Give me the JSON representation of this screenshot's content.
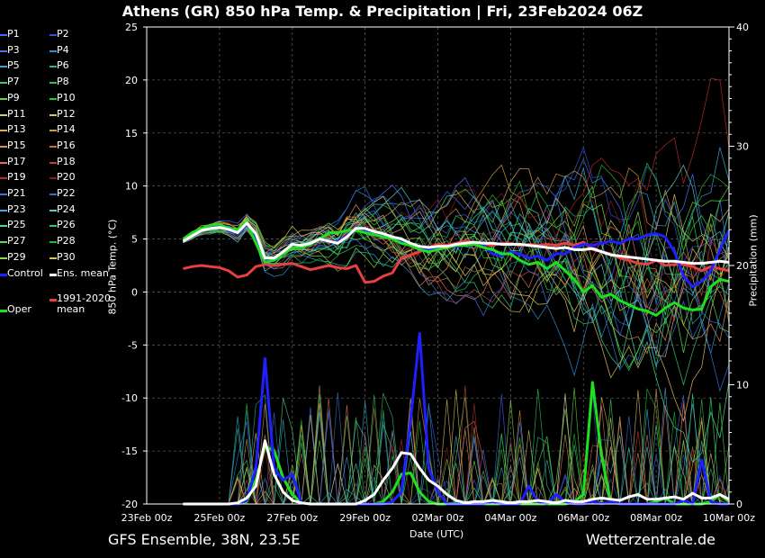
{
  "title": "Athens  (GR)  850 hPa Temp. & Precipitation | Fri, 23Feb2024 06Z",
  "footer": {
    "model": "GFS Ensemble, 38N, 23.5E",
    "site": "Wetterzentrale.de"
  },
  "colors": {
    "background": "#000000",
    "grid": "#555555",
    "control": "#1f1fff",
    "ens_mean": "#ffffff",
    "climate": "#e84040",
    "oper": "#1ee01e"
  },
  "legend": [
    {
      "label": "P1",
      "color": "#4466ff"
    },
    {
      "label": "P2",
      "color": "#3355dd"
    },
    {
      "label": "P3",
      "color": "#4477ee"
    },
    {
      "label": "P4",
      "color": "#2f8fd6"
    },
    {
      "label": "P5",
      "color": "#33a9d0"
    },
    {
      "label": "P6",
      "color": "#2bb39a"
    },
    {
      "label": "P7",
      "color": "#33cc77"
    },
    {
      "label": "P8",
      "color": "#2ec45a"
    },
    {
      "label": "P9",
      "color": "#66d24a"
    },
    {
      "label": "P10",
      "color": "#22cc22"
    },
    {
      "label": "P11",
      "color": "#d8c870"
    },
    {
      "label": "P12",
      "color": "#e0c060"
    },
    {
      "label": "P13",
      "color": "#d6b060"
    },
    {
      "label": "P14",
      "color": "#cc9944"
    },
    {
      "label": "P15",
      "color": "#d89050"
    },
    {
      "label": "P16",
      "color": "#c87038"
    },
    {
      "label": "P17",
      "color": "#d87060"
    },
    {
      "label": "P18",
      "color": "#c04040"
    },
    {
      "label": "P19",
      "color": "#b02a2a"
    },
    {
      "label": "P20",
      "color": "#901818"
    },
    {
      "label": "P21",
      "color": "#3c70e0"
    },
    {
      "label": "P22",
      "color": "#3070cc"
    },
    {
      "label": "P23",
      "color": "#44aadd"
    },
    {
      "label": "P24",
      "color": "#55cccc"
    },
    {
      "label": "P25",
      "color": "#44dd88"
    },
    {
      "label": "P26",
      "color": "#33cc66"
    },
    {
      "label": "P27",
      "color": "#55dd55"
    },
    {
      "label": "P28",
      "color": "#22bb33"
    },
    {
      "label": "P29",
      "color": "#88dd44"
    },
    {
      "label": "P30",
      "color": "#d8c848"
    },
    {
      "label": "Control",
      "color": "#1f1fff"
    },
    {
      "label": "Ens. mean",
      "color": "#ffffff"
    },
    {
      "label": "Oper",
      "color": "#1ee01e"
    },
    {
      "label": "1991-2020\nmean",
      "color": "#e84040"
    }
  ],
  "axes": {
    "ylabel_left": "850 hPa Temp. (°C)",
    "ylabel_right": "Precipitation (mm)",
    "xlabel": "Date (UTC)"
  },
  "chart_data": {
    "type": "line",
    "x_ticks": [
      "23Feb 00z",
      "25Feb 00z",
      "27Feb 00z",
      "29Feb 00z",
      "02Mar 00z",
      "04Mar 00z",
      "06Mar 00z",
      "08Mar 00z",
      "10Mar 00z"
    ],
    "x_range_days": [
      0,
      16
    ],
    "ylim_left": [
      -20,
      25
    ],
    "y_ticks_left": [
      -20,
      -15,
      -10,
      -5,
      0,
      5,
      10,
      15,
      20,
      25
    ],
    "ylim_right": [
      0,
      40
    ],
    "y_ticks_right": [
      0,
      10,
      20,
      30,
      40
    ],
    "grid": true,
    "series": [
      {
        "name": "Ens. mean",
        "axis": "temp",
        "x_start": 1.0,
        "step": 0.25,
        "values": [
          4.8,
          5.3,
          5.8,
          6.0,
          6.1,
          5.9,
          5.6,
          6.5,
          5.5,
          3.2,
          3.2,
          3.8,
          4.5,
          4.4,
          4.6,
          5.0,
          4.8,
          4.6,
          5.2,
          6.0,
          6.0,
          5.7,
          5.5,
          5.2,
          5.0,
          4.6,
          4.3,
          4.2,
          4.3,
          4.3,
          4.5,
          4.6,
          4.7,
          4.6,
          4.6,
          4.5,
          4.5,
          4.5,
          4.4,
          4.3,
          4.2,
          4.1,
          4.2,
          4.0,
          4.0,
          4.1,
          3.8,
          3.5,
          3.4,
          3.3,
          3.2,
          3.1,
          3.0,
          2.9,
          2.9,
          2.8,
          2.7,
          2.7,
          2.8,
          2.9,
          2.8
        ]
      },
      {
        "name": "Control",
        "axis": "temp",
        "x_start": 1.0,
        "step": 0.25,
        "values": [
          5.0,
          5.5,
          5.8,
          6.1,
          6.2,
          5.8,
          5.5,
          6.4,
          5.0,
          3.0,
          3.1,
          3.8,
          4.4,
          4.3,
          4.5,
          5.0,
          4.8,
          4.7,
          5.3,
          5.9,
          5.8,
          5.4,
          5.3,
          5.0,
          4.8,
          4.5,
          4.2,
          4.0,
          4.1,
          4.2,
          4.3,
          4.4,
          4.6,
          4.4,
          3.6,
          3.4,
          3.8,
          3.6,
          3.2,
          3.4,
          3.0,
          3.6,
          3.6,
          4.2,
          4.5,
          4.4,
          4.6,
          4.8,
          4.6,
          5.0,
          5.0,
          5.4,
          5.5,
          5.2,
          3.8,
          1.5,
          0.5,
          1.0,
          2.0,
          4.0,
          5.8
        ]
      },
      {
        "name": "Oper",
        "axis": "temp",
        "x_start": 1.0,
        "step": 0.25,
        "values": [
          5.0,
          5.6,
          6.0,
          6.3,
          6.4,
          6.0,
          5.9,
          6.6,
          4.6,
          2.8,
          3.0,
          3.6,
          4.2,
          4.2,
          4.5,
          5.0,
          5.6,
          5.6,
          5.8,
          5.8,
          5.6,
          5.4,
          5.2,
          5.0,
          4.6,
          4.4,
          4.0,
          3.8,
          4.0,
          4.2,
          4.4,
          4.4,
          4.5,
          4.2,
          4.0,
          3.6,
          3.6,
          3.0,
          2.6,
          2.8,
          2.2,
          2.8,
          2.0,
          1.2,
          0.0,
          0.6,
          -0.5,
          -0.2,
          -0.8,
          -1.2,
          -1.6,
          -1.8,
          -2.2,
          -1.5,
          -1.0,
          -1.5,
          -1.7,
          -1.6,
          0.5,
          1.2,
          1.0
        ]
      },
      {
        "name": "1991-2020 mean",
        "axis": "temp",
        "x_start": 1.0,
        "step": 0.25,
        "values": [
          2.2,
          2.4,
          2.5,
          2.4,
          2.3,
          2.0,
          1.4,
          1.6,
          2.4,
          2.6,
          2.5,
          2.6,
          2.7,
          2.4,
          2.1,
          2.3,
          2.5,
          2.3,
          2.2,
          2.5,
          0.9,
          1.0,
          1.5,
          1.8,
          3.2,
          3.5,
          3.8,
          4.2,
          4.5,
          4.4,
          4.6,
          4.8,
          4.7,
          4.5,
          4.4,
          4.6,
          4.6,
          4.4,
          4.5,
          4.4,
          4.5,
          4.4,
          4.6,
          4.4,
          4.7,
          4.0,
          3.8,
          3.6,
          3.2,
          3.0,
          2.7,
          2.6,
          3.0,
          2.5,
          2.6,
          2.6,
          2.4,
          2.0,
          2.4,
          2.2,
          2.0
        ]
      },
      {
        "name": "Ens. mean precip",
        "axis": "precip",
        "x_start": 1.0,
        "step": 0.25,
        "values": [
          0,
          0,
          0,
          0,
          0,
          0,
          0.1,
          0.5,
          1.5,
          5.3,
          2.5,
          1.0,
          0.3,
          0.1,
          0,
          0,
          0,
          0,
          0,
          0,
          0.3,
          0.8,
          2.0,
          3.0,
          4.3,
          4.2,
          3.0,
          2.0,
          1.5,
          0.8,
          0.3,
          0.1,
          0.2,
          0.2,
          0.3,
          0.2,
          0.1,
          0.2,
          0.2,
          0.3,
          0.2,
          0.1,
          0.3,
          0.2,
          0.2,
          0.4,
          0.5,
          0.4,
          0.3,
          0.6,
          0.8,
          0.4,
          0.4,
          0.5,
          0.6,
          0.4,
          0.9,
          0.5,
          0.5,
          0.8,
          0.4
        ]
      },
      {
        "name": "Control precip",
        "axis": "precip",
        "x_start": 1.0,
        "step": 0.25,
        "values": [
          0,
          0,
          0,
          0,
          0,
          0,
          0,
          0.3,
          3.0,
          12.2,
          3.0,
          2.0,
          2.5,
          0.1,
          0,
          0,
          0,
          0,
          0,
          0,
          0,
          0,
          0,
          0.2,
          1.0,
          7.0,
          14.3,
          3.0,
          1.0,
          0,
          0,
          0,
          0,
          0,
          0.2,
          0,
          0,
          0,
          1.5,
          0.2,
          0,
          0.8,
          0.2,
          0,
          0,
          0.2,
          0,
          0.2,
          0,
          0,
          0,
          0,
          0,
          0,
          0,
          0.3,
          0,
          3.7,
          0.2,
          0,
          0
        ]
      },
      {
        "name": "Oper precip",
        "axis": "precip",
        "x_start": 1.0,
        "step": 0.25,
        "values": [
          0,
          0,
          0,
          0,
          0,
          0,
          0,
          0.2,
          2.0,
          4.8,
          4.5,
          2.2,
          0.8,
          0.1,
          0,
          0,
          0,
          0,
          0,
          0,
          0,
          0,
          0.2,
          1.0,
          2.5,
          2.6,
          1.0,
          0.2,
          0,
          0,
          0.1,
          0,
          0,
          0,
          0,
          0,
          0,
          0,
          0,
          0,
          0,
          0,
          0,
          0.2,
          0.8,
          10.2,
          4.0,
          0.2,
          0,
          0,
          0,
          0,
          0.2,
          0.5,
          0,
          0,
          0,
          0,
          0.2,
          0.8,
          0.2
        ]
      }
    ]
  }
}
